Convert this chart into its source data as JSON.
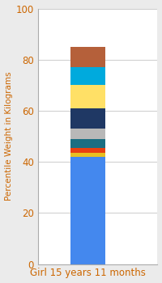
{
  "categories": [
    "Girl 15 years 11 months"
  ],
  "segments": [
    {
      "label": "base_blue",
      "value": 42.0,
      "color": "#4488ee"
    },
    {
      "label": "gold_thin",
      "value": 1.5,
      "color": "#e8c020"
    },
    {
      "label": "orange_red",
      "value": 2.0,
      "color": "#e84010"
    },
    {
      "label": "teal",
      "value": 3.5,
      "color": "#1a6e82"
    },
    {
      "label": "gray",
      "value": 4.0,
      "color": "#b8b8b8"
    },
    {
      "label": "dark_navy",
      "value": 8.0,
      "color": "#1f3864"
    },
    {
      "label": "yellow",
      "value": 9.0,
      "color": "#ffe066"
    },
    {
      "label": "cyan",
      "value": 7.0,
      "color": "#00aadd"
    },
    {
      "label": "brown_rust",
      "value": 8.0,
      "color": "#b5603a"
    }
  ],
  "ylim": [
    0,
    100
  ],
  "yticks": [
    0,
    20,
    40,
    60,
    80,
    100
  ],
  "ylabel": "Percentile Weight in Kilograms",
  "ylabel_fontsize": 7.5,
  "tick_fontsize": 8.5,
  "xlabel_fontsize": 8.5,
  "label_color": "#cc6600",
  "background_color": "#ebebeb",
  "plot_background": "#ffffff",
  "bar_width": 0.35
}
